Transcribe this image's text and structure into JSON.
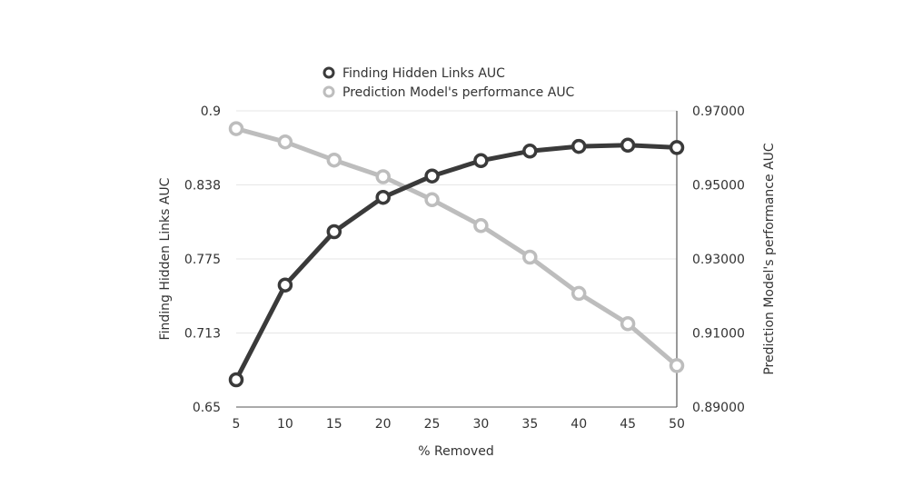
{
  "chart_data": {
    "type": "line",
    "title": "",
    "xlabel": "% Removed",
    "ylabel_left": "Finding Hidden Links AUC",
    "ylabel_right": "Prediction Model's performance AUC",
    "x": [
      5,
      10,
      15,
      20,
      25,
      30,
      35,
      40,
      45,
      50
    ],
    "x_tick_labels": [
      "5",
      "10",
      "15",
      "20",
      "25",
      "30",
      "35",
      "40",
      "45",
      "50"
    ],
    "y_left_lim": [
      0.65,
      0.9
    ],
    "y_left_tick_values": [
      0.65,
      0.7125,
      0.775,
      0.8375,
      0.9
    ],
    "y_left_tick_labels": [
      "0.65",
      "0.713",
      "0.775",
      "0.838",
      "0.9"
    ],
    "y_right_lim": [
      0.89,
      0.97
    ],
    "y_right_tick_values": [
      0.89,
      0.91,
      0.93,
      0.95,
      0.97
    ],
    "y_right_tick_labels": [
      "0.89000",
      "0.91000",
      "0.93000",
      "0.95000",
      "0.97000"
    ],
    "grid": "horizontal",
    "legend_position": "top-center",
    "series": [
      {
        "name": "Finding Hidden Links AUC",
        "axis": "left",
        "color": "#3a3a3a",
        "values": [
          0.673,
          0.753,
          0.798,
          0.827,
          0.845,
          0.858,
          0.866,
          0.87,
          0.871,
          0.869
        ]
      },
      {
        "name": "Prediction Model's performance AUC",
        "axis": "right",
        "color": "#bdbdbd",
        "values": [
          0.9652,
          0.9616,
          0.9567,
          0.9522,
          0.946,
          0.939,
          0.9305,
          0.9207,
          0.9125,
          0.9012
        ]
      }
    ]
  }
}
